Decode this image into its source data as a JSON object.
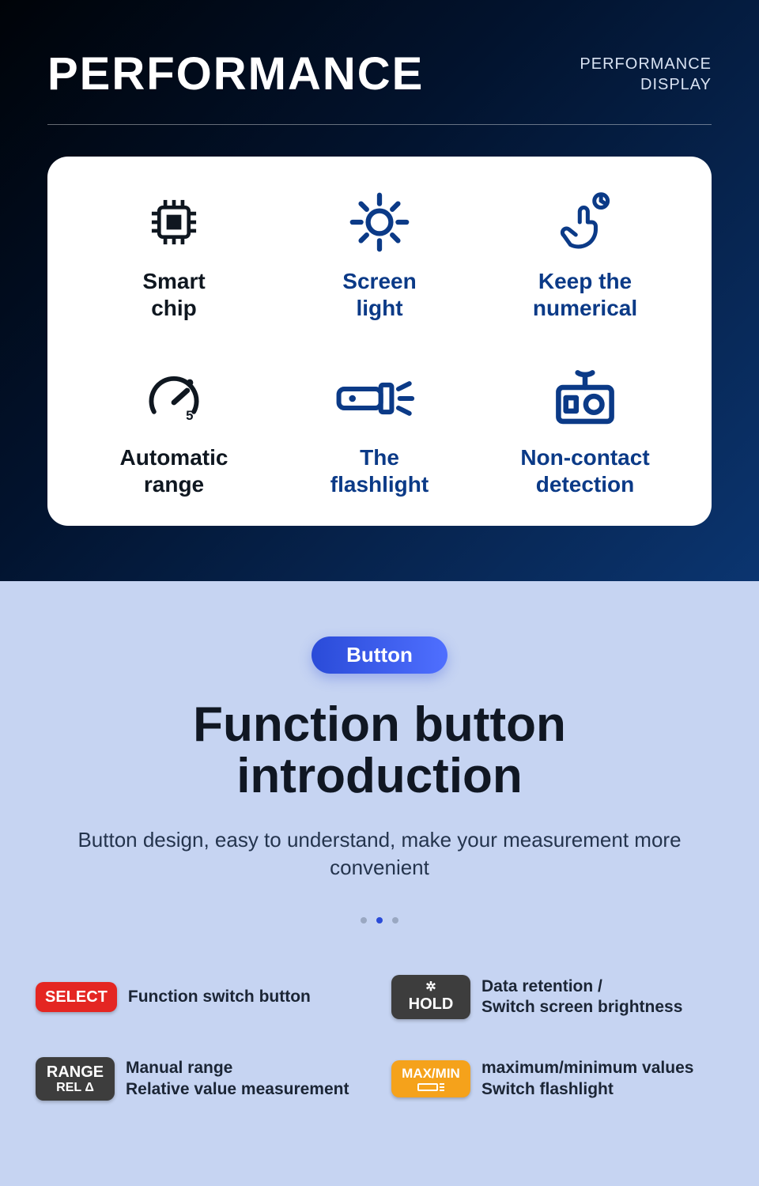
{
  "colors": {
    "top_gradient_from": "#000308",
    "top_gradient_mid": "#02132e",
    "top_gradient_to": "#0b3570",
    "card_bg": "#ffffff",
    "icon_blue": "#0b3a87",
    "icon_dark": "#0f1720",
    "bottom_bg": "#c6d4f2",
    "pill_from": "#2a4bd8",
    "pill_to": "#4f6fff",
    "title_dark": "#101723",
    "sub_text": "#24344d",
    "dot_inactive": "#9aa8c2",
    "dot_active": "#2a4bd8"
  },
  "header": {
    "title": "PERFORMANCE",
    "sub_line1": "PERFORMANCE",
    "sub_line2": "DISPLAY"
  },
  "features": [
    {
      "icon": "chip",
      "label_l1": "Smart",
      "label_l2": "chip",
      "color": "dark"
    },
    {
      "icon": "sun",
      "label_l1": "Screen",
      "label_l2": "light",
      "color": "blue"
    },
    {
      "icon": "hand-tap",
      "label_l1": "Keep the",
      "label_l2": "numerical",
      "color": "blue"
    },
    {
      "icon": "gauge",
      "label_l1": "Automatic",
      "label_l2": "range",
      "color": "dark"
    },
    {
      "icon": "flashlight",
      "label_l1": "The",
      "label_l2": "flashlight",
      "color": "blue"
    },
    {
      "icon": "radio",
      "label_l1": "Non-contact",
      "label_l2": "detection",
      "color": "blue"
    }
  ],
  "button_section": {
    "pill": "Button",
    "title_l1": "Function button",
    "title_l2": "introduction",
    "subtitle": "Button design, easy to understand, make your measurement more convenient",
    "active_dot_index": 1,
    "dot_count": 3
  },
  "buttons": [
    {
      "badge_main": "SELECT",
      "badge_sub": "",
      "bg": "#e42622",
      "desc": "Function switch button"
    },
    {
      "badge_main": "HOLD",
      "badge_sub": "gear",
      "bg": "#3d3d3d",
      "desc": "Data retention /\nSwitch screen brightness"
    },
    {
      "badge_main": "RANGE",
      "badge_sub": "REL  Δ",
      "bg": "#3d3d3d",
      "desc": "Manual range\nRelative value measurement"
    },
    {
      "badge_main": "MAX/MIN",
      "badge_sub": "flash",
      "bg": "#f5a21b",
      "desc": "maximum/minimum values\nSwitch flashlight"
    }
  ]
}
